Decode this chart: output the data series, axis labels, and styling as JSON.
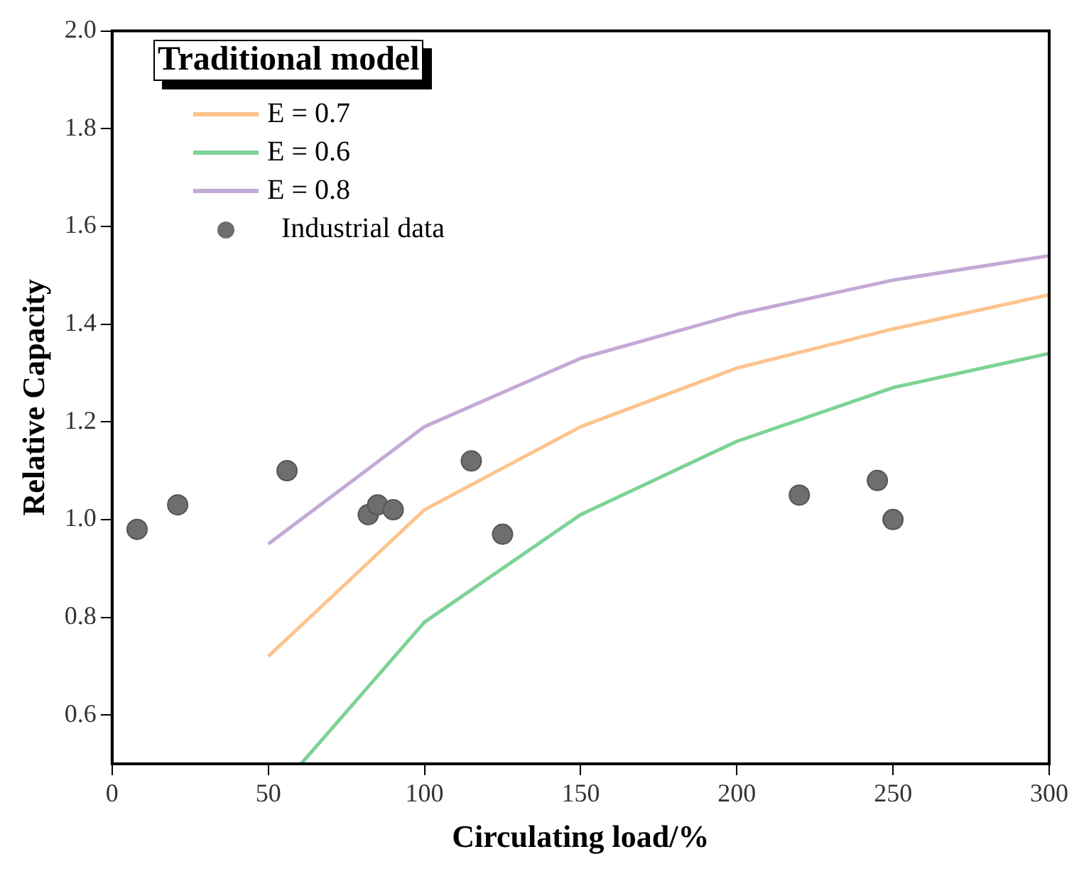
{
  "chart_data": {
    "type": "line",
    "xlabel": "Circulating load/%",
    "ylabel": "Relative Capacity",
    "legend_title": "Traditional model",
    "legend": "top left",
    "grid": false,
    "xlim": [
      0,
      300
    ],
    "xticks": [
      0,
      50,
      100,
      150,
      200,
      250,
      300
    ],
    "ylim": [
      0.5,
      2.0
    ],
    "yticks": [
      {
        "value": 0.6,
        "label": "0.6"
      },
      {
        "value": 0.8,
        "label": "0.8"
      },
      {
        "value": 1.0,
        "label": "1.0"
      },
      {
        "value": 1.2,
        "label": "1.2"
      },
      {
        "value": 1.4,
        "label": "1.4"
      },
      {
        "value": 1.6,
        "label": "1.6"
      },
      {
        "value": 1.8,
        "label": "1.8"
      },
      {
        "value": 2.0,
        "label": "2.0"
      }
    ],
    "series": [
      {
        "name": "E = 0.7",
        "type": "line",
        "color": "#fdc48e",
        "marker": "none",
        "x": [
          50,
          100,
          150,
          200,
          250,
          300
        ],
        "values": [
          0.72,
          1.02,
          1.19,
          1.31,
          1.39,
          1.46
        ]
      },
      {
        "name": "E = 0.6",
        "type": "line",
        "color": "#7dd396",
        "marker": "none",
        "x": [
          60.5,
          100,
          150,
          200,
          250,
          300
        ],
        "values": [
          0.5,
          0.79,
          1.01,
          1.16,
          1.27,
          1.34
        ]
      },
      {
        "name": "E = 0.8",
        "type": "line",
        "color": "#c4a9d6",
        "marker": "none",
        "x": [
          50,
          100,
          150,
          200,
          250,
          300
        ],
        "values": [
          0.95,
          1.19,
          1.33,
          1.42,
          1.49,
          1.54
        ]
      },
      {
        "name": "Industrial data",
        "type": "scatter",
        "color": "#6e6e6e",
        "marker": "circle",
        "x": [
          8,
          21,
          56,
          82,
          85,
          90,
          115,
          125,
          220,
          245,
          250
        ],
        "values": [
          0.98,
          1.03,
          1.1,
          1.01,
          1.03,
          1.02,
          1.12,
          0.97,
          1.05,
          1.08,
          1.0
        ]
      }
    ]
  }
}
